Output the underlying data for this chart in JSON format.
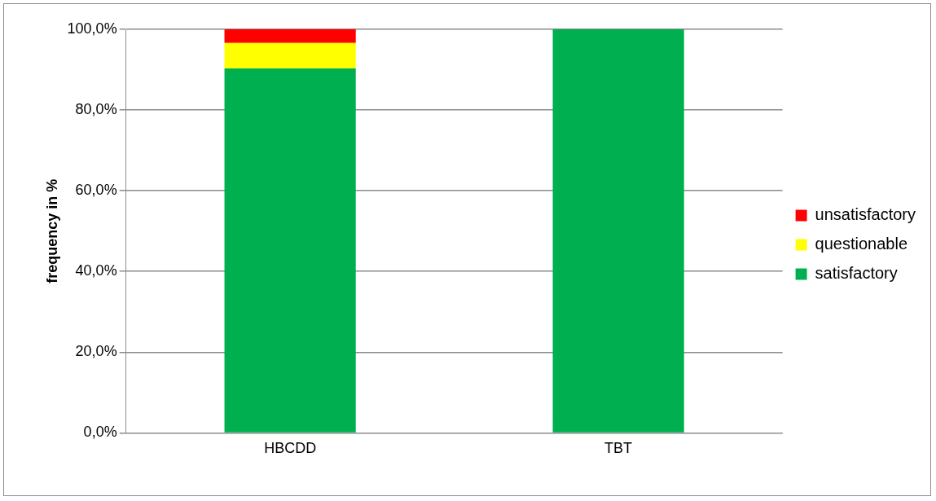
{
  "chart_data": {
    "type": "bar",
    "stacked": true,
    "ylabel": "frequency in %",
    "categories": [
      "HBCDD",
      "TBT"
    ],
    "series": [
      {
        "name": "satisfactory",
        "color": "#00b050",
        "values": [
          90.3,
          100
        ]
      },
      {
        "name": "questionable",
        "color": "#ffff00",
        "values": [
          6.3,
          0
        ]
      },
      {
        "name": "unsatisfactory",
        "color": "#ff0000",
        "values": [
          3.4,
          0
        ]
      }
    ],
    "ylim": [
      0,
      100
    ],
    "yticks": [
      {
        "value": 0,
        "label": "0,0%"
      },
      {
        "value": 20,
        "label": "20,0%"
      },
      {
        "value": 40,
        "label": "40,0%"
      },
      {
        "value": 60,
        "label": "60,0%"
      },
      {
        "value": 80,
        "label": "80,0%"
      },
      {
        "value": 100,
        "label": "100,0%"
      }
    ],
    "grid": "y",
    "legend": "right"
  }
}
